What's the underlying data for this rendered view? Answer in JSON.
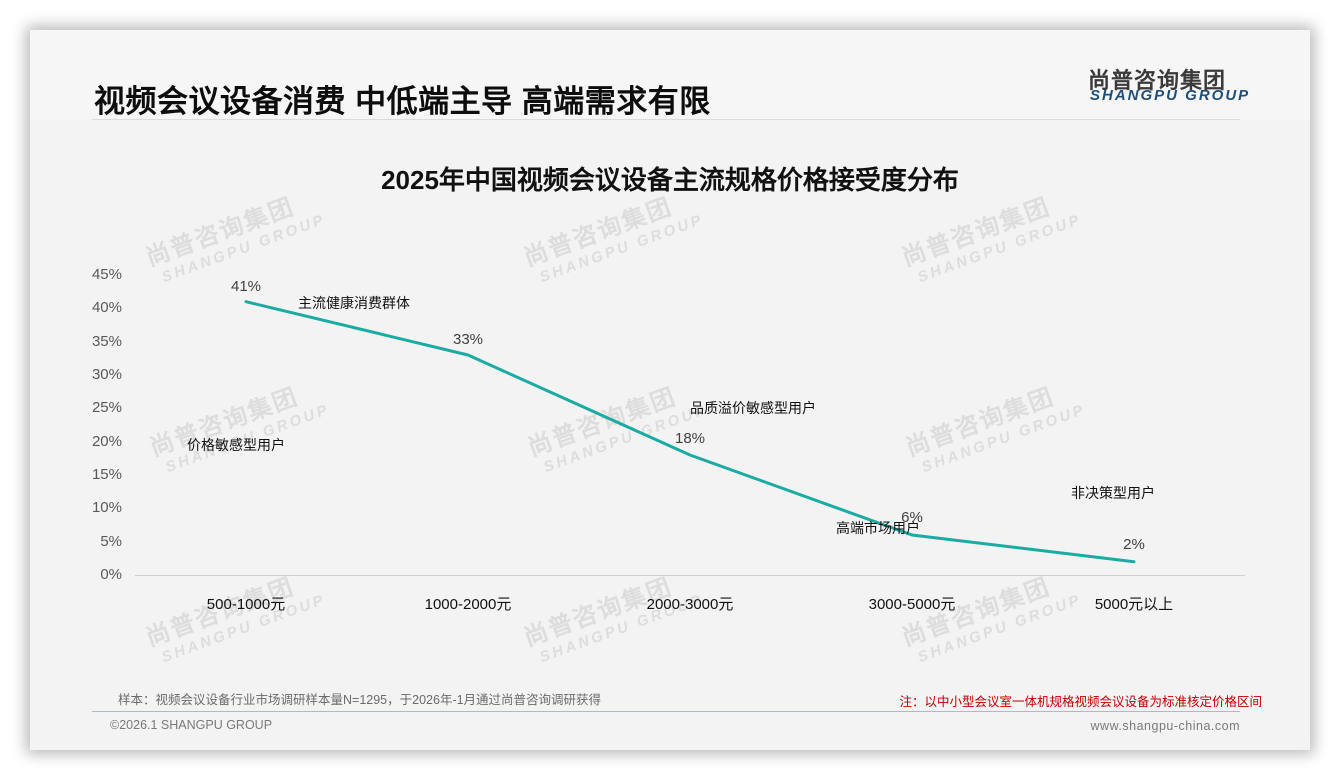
{
  "header": {
    "title": "视频会议设备消费 中低端主导 高端需求有限",
    "logo_cn": "尚普咨询集团",
    "logo_en": "SHANGPU GROUP"
  },
  "watermark": {
    "cn": "尚普咨询集团",
    "en": "SHANGPU GROUP"
  },
  "chart_data": {
    "type": "line",
    "title": "2025年中国视频会议设备主流规格价格接受度分布",
    "xlabel": "",
    "ylabel": "",
    "categories": [
      "500-1000元",
      "1000-2000元",
      "2000-3000元",
      "3000-5000元",
      "5000元以上"
    ],
    "series": [
      {
        "name": "价格接受度",
        "values": [
          41,
          33,
          18,
          6,
          2
        ],
        "color": "#1aaba3"
      }
    ],
    "data_labels": [
      "41%",
      "33%",
      "18%",
      "6%",
      "2%"
    ],
    "ylim": [
      0,
      45
    ],
    "yticks": [
      "0%",
      "5%",
      "10%",
      "15%",
      "20%",
      "25%",
      "30%",
      "35%",
      "40%",
      "45%"
    ],
    "grid": false,
    "legend": "none",
    "annotations": [
      {
        "text": "价格敏感型用户",
        "category": "500-1000元"
      },
      {
        "text": "主流健康消费群体",
        "category": "1000-2000元"
      },
      {
        "text": "品质溢价敏感型用户",
        "category": "2000-3000元"
      },
      {
        "text": "高端市场用户",
        "category": "3000-5000元"
      },
      {
        "text": "非决策型用户",
        "category": "5000元以上"
      }
    ]
  },
  "footer": {
    "sample_note": "样本：视频会议设备行业市场调研样本量N=1295，于2026年-1月通过尚普咨询调研获得",
    "remark": "注：以中小型会议室一体机规格视频会议设备为标准核定价格区间",
    "copyright": "©2026.1 SHANGPU GROUP",
    "website": "www.shangpu-china.com"
  }
}
